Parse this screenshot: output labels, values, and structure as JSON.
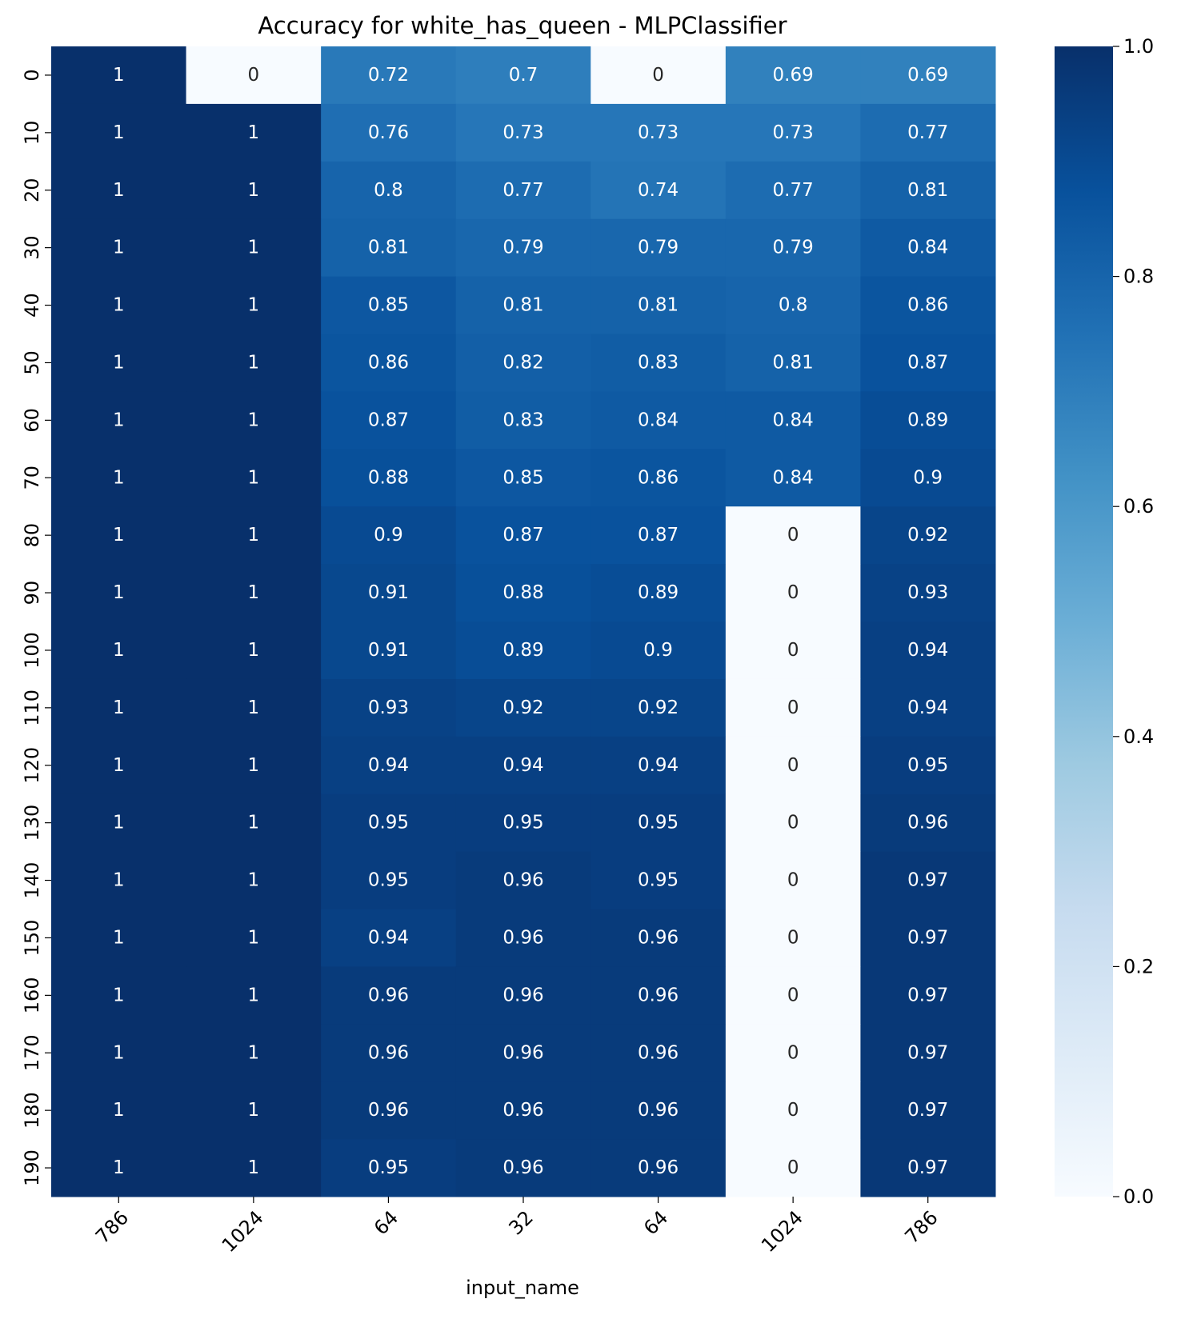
{
  "chart_data": {
    "type": "heatmap",
    "title": "Accuracy for white_has_queen - MLPClassifier",
    "xlabel": "input_name",
    "ylabel": "",
    "x_categories": [
      "786",
      "1024",
      "64",
      "32",
      "64",
      "1024",
      "786"
    ],
    "y_categories": [
      "0",
      "10",
      "20",
      "30",
      "40",
      "50",
      "60",
      "70",
      "80",
      "90",
      "100",
      "110",
      "120",
      "130",
      "140",
      "150",
      "160",
      "170",
      "180",
      "190"
    ],
    "values": [
      [
        1,
        0,
        0.72,
        0.7,
        0,
        0.69,
        0.69
      ],
      [
        1,
        1,
        0.76,
        0.73,
        0.73,
        0.73,
        0.77
      ],
      [
        1,
        1,
        0.8,
        0.77,
        0.74,
        0.77,
        0.81
      ],
      [
        1,
        1,
        0.81,
        0.79,
        0.79,
        0.79,
        0.84
      ],
      [
        1,
        1,
        0.85,
        0.81,
        0.81,
        0.8,
        0.86
      ],
      [
        1,
        1,
        0.86,
        0.82,
        0.83,
        0.81,
        0.87
      ],
      [
        1,
        1,
        0.87,
        0.83,
        0.84,
        0.84,
        0.89
      ],
      [
        1,
        1,
        0.88,
        0.85,
        0.86,
        0.84,
        0.9
      ],
      [
        1,
        1,
        0.9,
        0.87,
        0.87,
        0,
        0.92
      ],
      [
        1,
        1,
        0.91,
        0.88,
        0.89,
        0,
        0.93
      ],
      [
        1,
        1,
        0.91,
        0.89,
        0.9,
        0,
        0.94
      ],
      [
        1,
        1,
        0.93,
        0.92,
        0.92,
        0,
        0.94
      ],
      [
        1,
        1,
        0.94,
        0.94,
        0.94,
        0,
        0.95
      ],
      [
        1,
        1,
        0.95,
        0.95,
        0.95,
        0,
        0.96
      ],
      [
        1,
        1,
        0.95,
        0.96,
        0.95,
        0,
        0.97
      ],
      [
        1,
        1,
        0.94,
        0.96,
        0.96,
        0,
        0.97
      ],
      [
        1,
        1,
        0.96,
        0.96,
        0.96,
        0,
        0.97
      ],
      [
        1,
        1,
        0.96,
        0.96,
        0.96,
        0,
        0.97
      ],
      [
        1,
        1,
        0.96,
        0.96,
        0.96,
        0,
        0.97
      ],
      [
        1,
        1,
        0.95,
        0.96,
        0.96,
        0,
        0.97
      ]
    ],
    "colorbar": {
      "range": [
        0,
        1
      ],
      "ticks": [
        "0.0",
        "0.2",
        "0.4",
        "0.6",
        "0.8",
        "1.0"
      ],
      "colormap": "Blues"
    }
  }
}
